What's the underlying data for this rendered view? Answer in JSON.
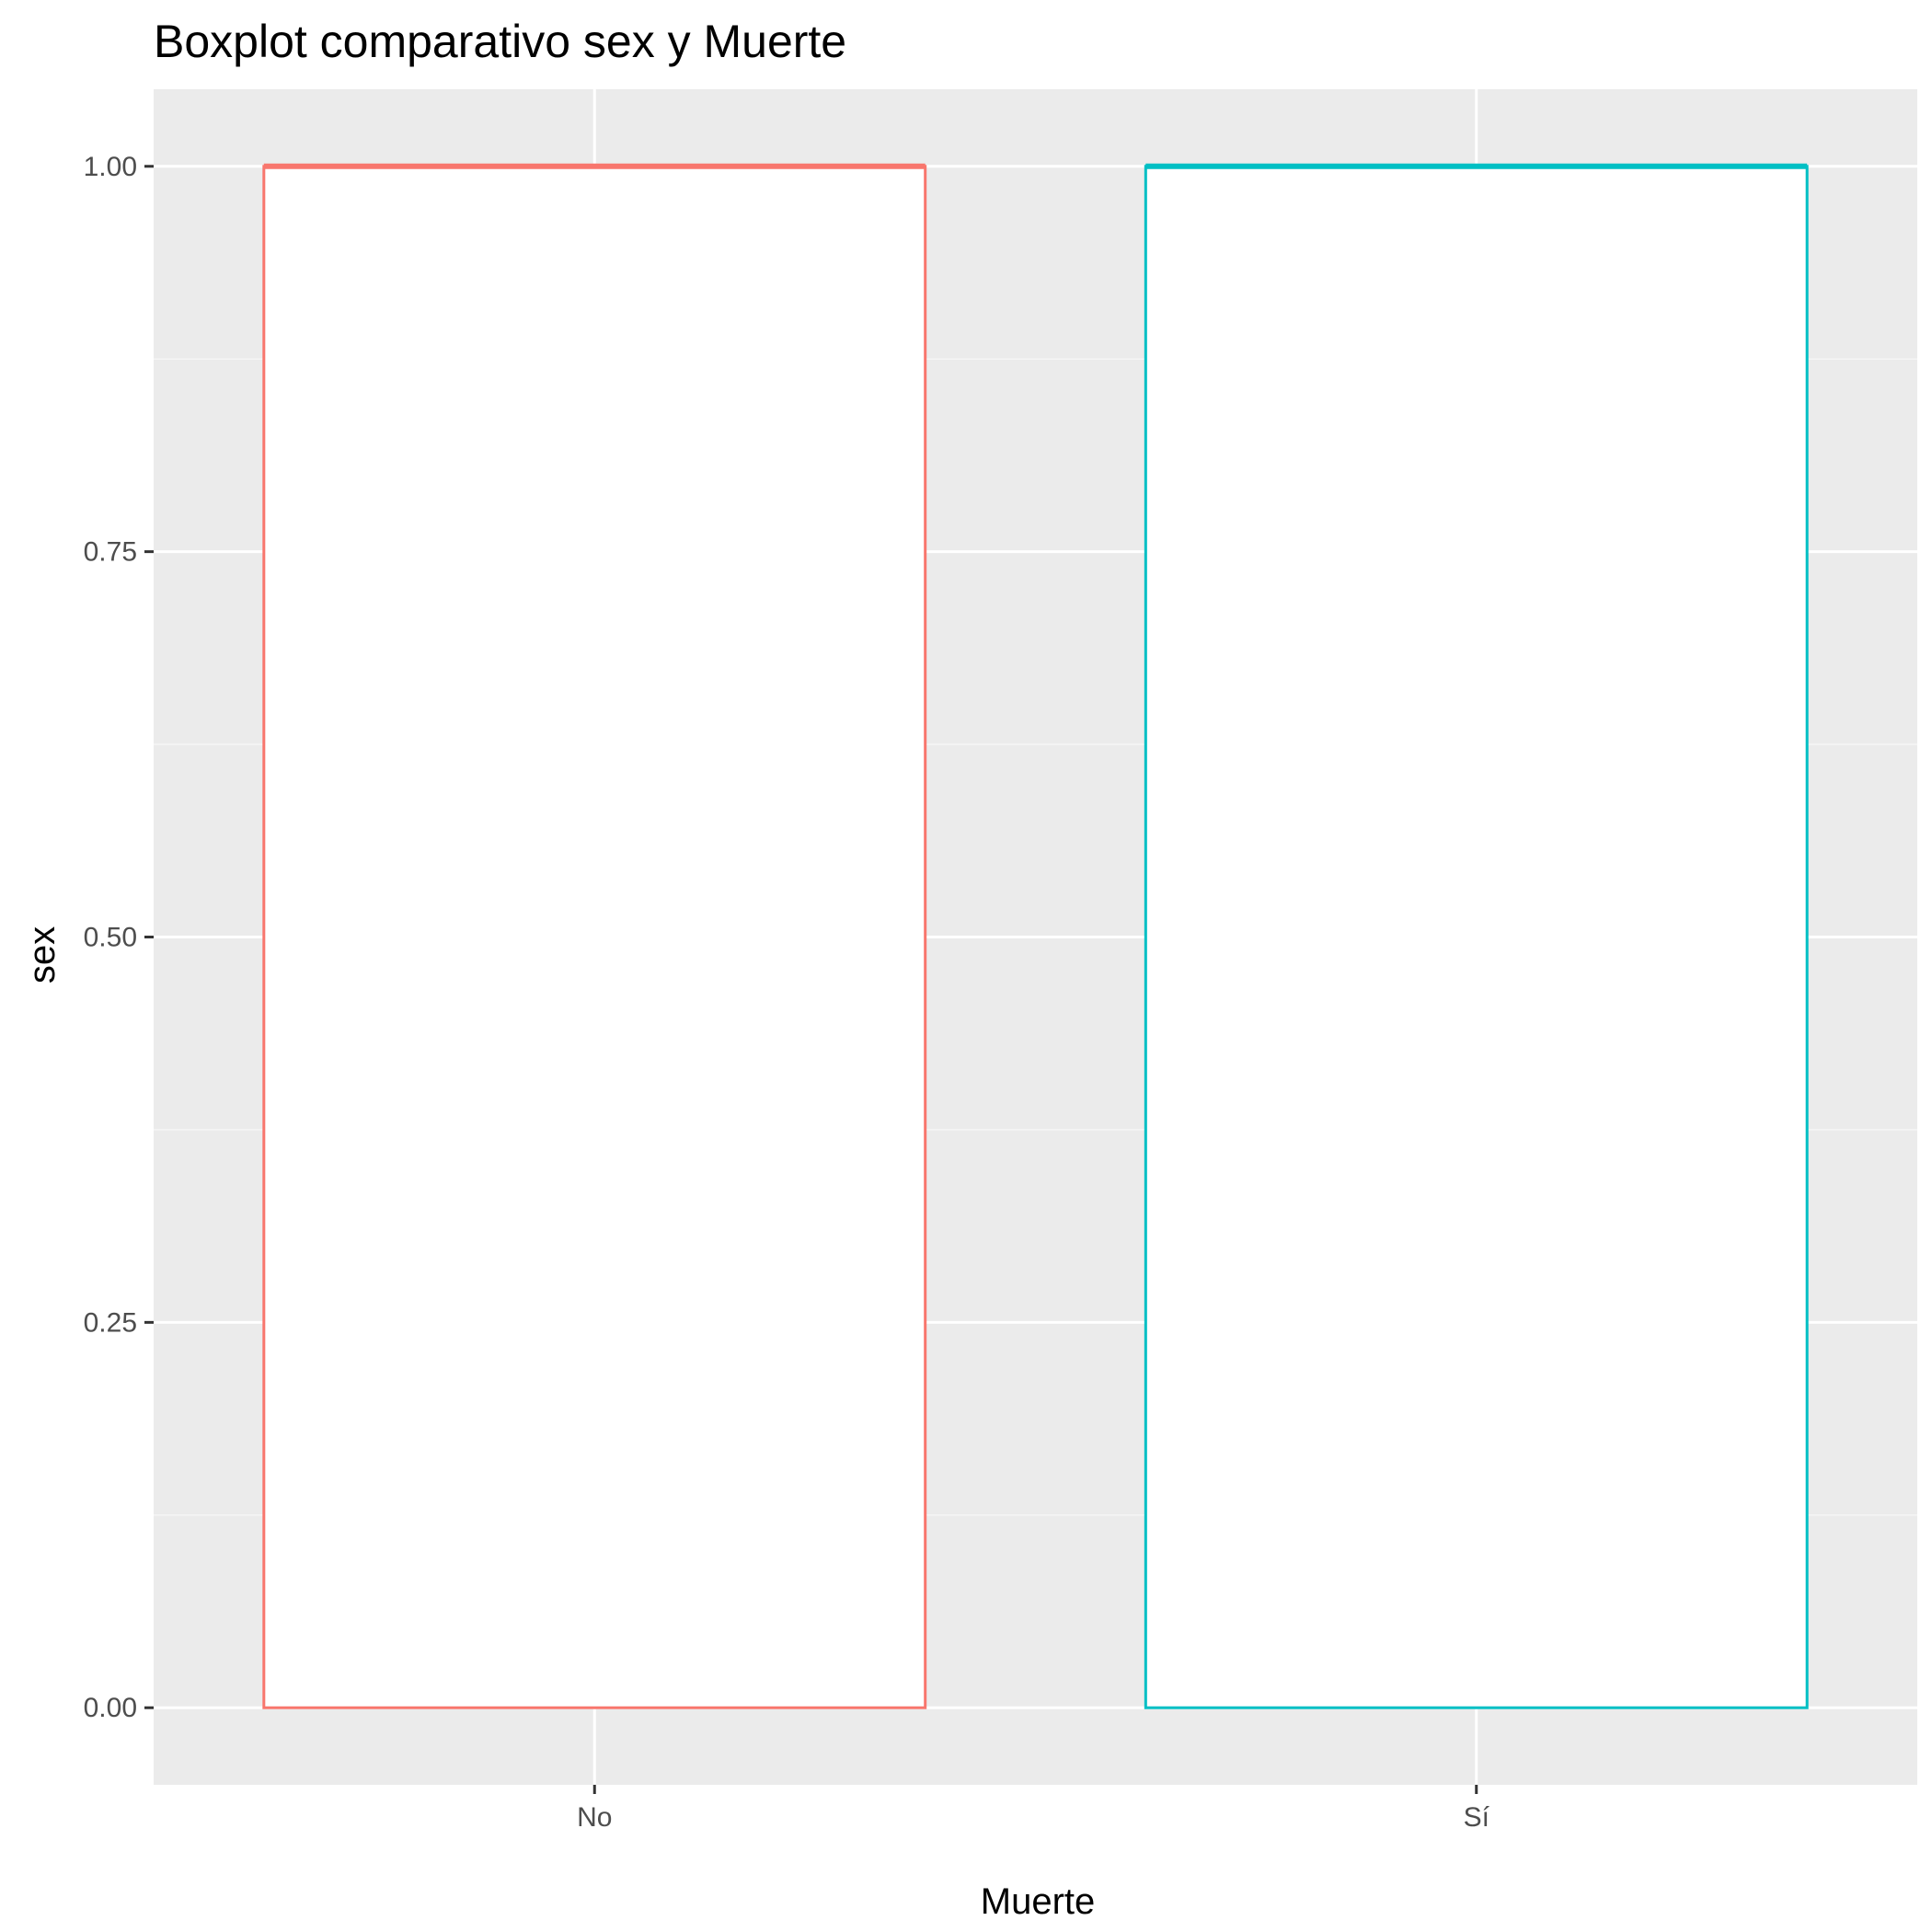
{
  "chart_data": {
    "type": "boxplot",
    "title": "Boxplot comparativo sex y Muerte",
    "xlabel": "Muerte",
    "ylabel": "sex",
    "categories": [
      "No",
      "Sí"
    ],
    "ylim": [
      -0.05,
      1.05
    ],
    "yticks": [
      0.0,
      0.25,
      0.5,
      0.75,
      1.0
    ],
    "ytick_labels": [
      "0.00",
      "0.25",
      "0.50",
      "0.75",
      "1.00"
    ],
    "grid": true,
    "legend": "none",
    "series": [
      {
        "category": "No",
        "min": 0,
        "q1": 0,
        "median": 1,
        "q3": 1,
        "max": 1,
        "color": "#F8766D"
      },
      {
        "category": "Sí",
        "min": 0,
        "q1": 0,
        "median": 1,
        "q3": 1,
        "max": 1,
        "color": "#00BFC4"
      }
    ],
    "colors": {
      "panel_background": "#EBEBEB",
      "grid_major": "#FFFFFF",
      "grid_minor": "#F5F5F5",
      "box_fill": "#FFFFFF",
      "tick_mark": "#333333"
    }
  }
}
